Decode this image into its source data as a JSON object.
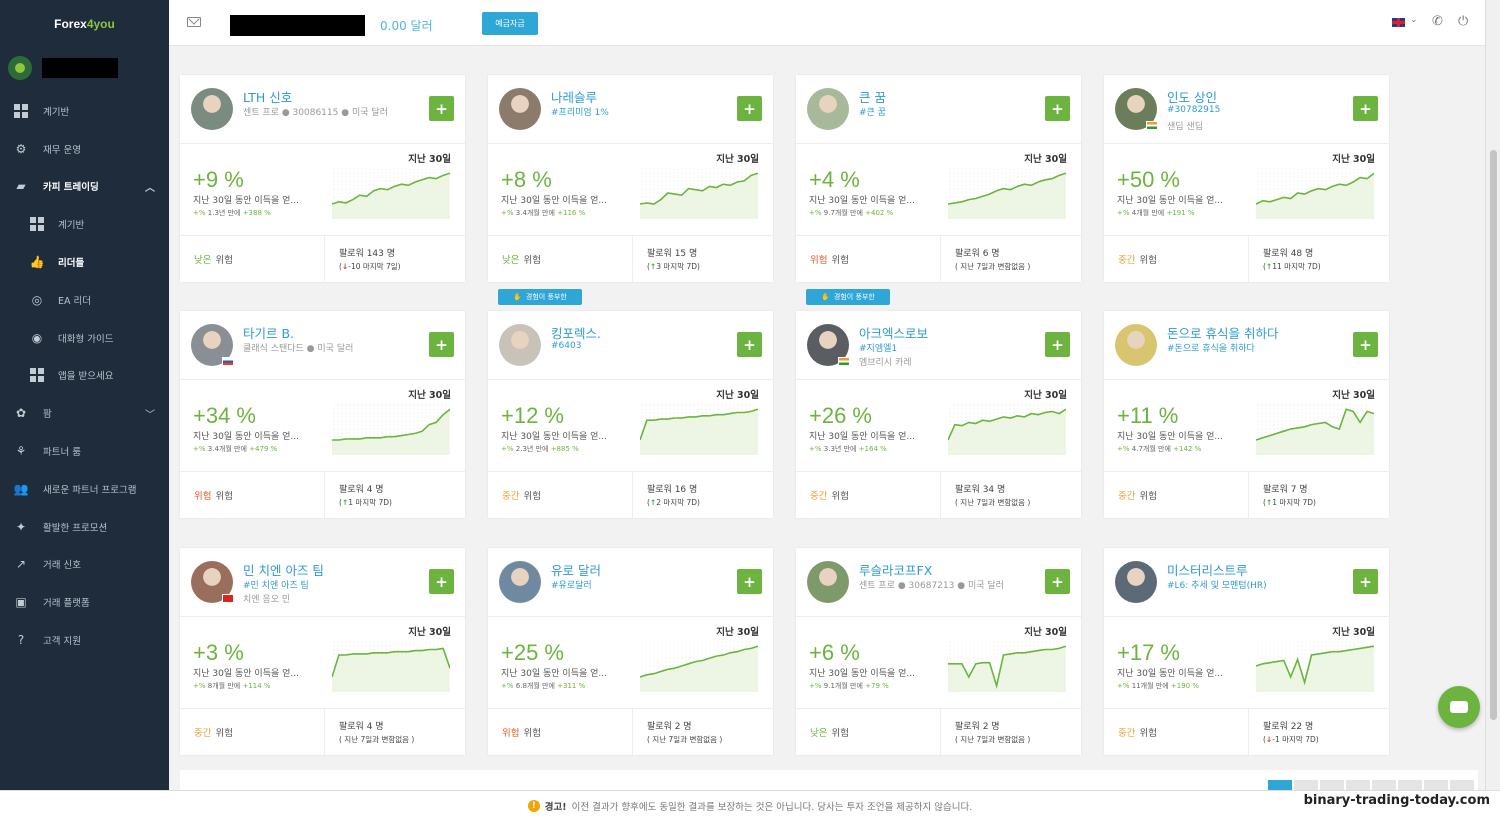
{
  "sidebar": {
    "logo_a": "Forex",
    "logo_b": "4you",
    "items": [
      {
        "label": "계기반",
        "icon": "dashboard-icon"
      },
      {
        "label": "재무 운영",
        "icon": "gear-icon"
      },
      {
        "label": "카피 트레이딩",
        "icon": "briefcase-icon"
      },
      {
        "label": "계기반",
        "icon": "dashboard-icon"
      },
      {
        "label": "리더들",
        "icon": "thumbs-up-icon"
      },
      {
        "label": "EA 리더",
        "icon": "robot-icon"
      },
      {
        "label": "대화형 가이드",
        "icon": "eye-icon"
      },
      {
        "label": "앱을 받으세요",
        "icon": "qr-icon"
      },
      {
        "label": "팜",
        "icon": "farm-icon"
      },
      {
        "label": "파트너 룸",
        "icon": "partner-icon"
      },
      {
        "label": "새로운 파트너 프로그램",
        "icon": "users-icon"
      },
      {
        "label": "활발한 프로모션",
        "icon": "megaphone-icon"
      },
      {
        "label": "거래 신호",
        "icon": "chart-line-icon"
      },
      {
        "label": "거래 플랫폼",
        "icon": "platform-icon"
      },
      {
        "label": "고객 지원",
        "icon": "help-icon"
      }
    ]
  },
  "topbar": {
    "balance": "0.00 달러",
    "deposit": "예금자금"
  },
  "labels": {
    "period": "지난 30일",
    "desc": "지난 30일 동안 이득을 얻...",
    "risk": "위험",
    "plus": "+",
    "experienced": "경험이 풍부한"
  },
  "traders": [
    {
      "name": "LTH 신호",
      "sub1": "센트 프로 ● 30086115 ● 미국 달러",
      "sub2": "",
      "pct": "+9 %",
      "since": "1.3년 만에",
      "since_pct": "+388 %",
      "risk_level": "낮은",
      "risk_class": "low",
      "followers": "팔로워 143 명",
      "delta": "-10",
      "delta_dir": "down",
      "delta_note": "마지막 7일)",
      "avatar": "#7a8b80",
      "flag": "",
      "badge": false,
      "spark": [
        10,
        12,
        11,
        14,
        18,
        17,
        22,
        24,
        23,
        26,
        28,
        27,
        30,
        32,
        34,
        33,
        36,
        38
      ]
    },
    {
      "name": "나레슬루",
      "sub1": "#프리미엄 1%",
      "sub2": "",
      "pct": "+8 %",
      "since": "3.4개월 만에",
      "since_pct": "+116 %",
      "risk_level": "낮은",
      "risk_class": "low",
      "followers": "팔로워 15 명",
      "delta": "3",
      "delta_dir": "up",
      "delta_note": "마지막 7D)",
      "avatar": "#8c7a6b",
      "flag": "",
      "badge": false,
      "spark": [
        10,
        11,
        10,
        14,
        20,
        19,
        18,
        24,
        23,
        22,
        26,
        25,
        28,
        27,
        30,
        31,
        36,
        38
      ]
    },
    {
      "name": "큰 꿈",
      "sub1": "#큰 꿈",
      "sub2": "",
      "pct": "+4 %",
      "since": "9.7개월 만에",
      "since_pct": "+402 %",
      "risk_level": "위험",
      "risk_class": "high",
      "followers": "팔로워 6 명",
      "delta": "",
      "delta_dir": "",
      "delta_note": "( 지난 7일과 변함없음 )",
      "avatar": "#a8b89a",
      "flag": "",
      "badge": false,
      "spark": [
        10,
        11,
        12,
        14,
        15,
        17,
        19,
        22,
        24,
        23,
        26,
        28,
        27,
        30,
        32,
        33,
        36,
        38
      ]
    },
    {
      "name": "인도 상인",
      "sub1": "#30782915",
      "sub2": "샌딥 샌딥",
      "pct": "+50 %",
      "since": "4개월 만에",
      "since_pct": "+191 %",
      "risk_level": "중간",
      "risk_class": "mid",
      "followers": "팔로워 48 명",
      "delta": "11",
      "delta_dir": "up",
      "delta_note": "마지막 7D)",
      "avatar": "#6b7d5a",
      "flag": "in",
      "badge": false,
      "spark": [
        10,
        13,
        12,
        14,
        16,
        15,
        20,
        19,
        22,
        24,
        23,
        26,
        28,
        27,
        30,
        34,
        33,
        38
      ]
    },
    {
      "name": "타기르 B.",
      "sub1": "클래식 스탠다드 ● 미국 달러",
      "sub2": "",
      "pct": "+34 %",
      "since": "3.4개월 만에",
      "since_pct": "+479 %",
      "risk_level": "위험",
      "risk_class": "high",
      "followers": "팔로워 4 명",
      "delta": "1",
      "delta_dir": "up",
      "delta_note": "마지막 7D)",
      "avatar": "#8a8f96",
      "flag": "ru",
      "badge": false,
      "spark": [
        10,
        10,
        11,
        11,
        11,
        12,
        12,
        12,
        13,
        13,
        14,
        15,
        16,
        18,
        24,
        26,
        33,
        38
      ]
    },
    {
      "name": "킹포렉스.",
      "sub1": "#6403",
      "sub2": "",
      "pct": "+12 %",
      "since": "2.3년 만에",
      "since_pct": "+885 %",
      "risk_level": "중간",
      "risk_class": "mid",
      "followers": "팔로워 16 명",
      "delta": "2",
      "delta_dir": "up",
      "delta_note": "마지막 7D)",
      "avatar": "#c9c2b8",
      "flag": "",
      "badge": true,
      "spark": [
        10,
        28,
        28,
        29,
        29,
        30,
        30,
        31,
        31,
        32,
        32,
        33,
        33,
        34,
        35,
        35,
        36,
        38
      ]
    },
    {
      "name": "아크엑스로보",
      "sub1": "#지엠엘1",
      "sub2": "엠브리시 카레",
      "pct": "+26 %",
      "since": "3.3년 만에",
      "since_pct": "+164 %",
      "risk_level": "중간",
      "risk_class": "mid",
      "followers": "팔로워 34 명",
      "delta": "",
      "delta_dir": "",
      "delta_note": "( 지난 7일과 변함없음 )",
      "avatar": "#5a5e63",
      "flag": "in",
      "badge": true,
      "spark": [
        10,
        24,
        23,
        26,
        25,
        28,
        27,
        29,
        31,
        30,
        32,
        31,
        34,
        33,
        35,
        36,
        34,
        38
      ]
    },
    {
      "name": "돈으로 휴식을 취하다",
      "sub1": "#돈으로 휴식을 취하다",
      "sub2": "",
      "pct": "+11 %",
      "since": "4.7개월 만에",
      "since_pct": "+142 %",
      "risk_level": "중간",
      "risk_class": "mid",
      "followers": "팔로워 7 명",
      "delta": "1",
      "delta_dir": "up",
      "delta_note": "마지막 7D)",
      "avatar": "#d9c470",
      "flag": "",
      "badge": false,
      "spark": [
        10,
        12,
        14,
        16,
        18,
        20,
        21,
        22,
        24,
        25,
        26,
        22,
        20,
        38,
        36,
        26,
        36,
        34
      ]
    },
    {
      "name": "민 치엔 아즈 팀",
      "sub1": "#민 치엔 아즈 팀",
      "sub2": "치엔 응오 민",
      "pct": "+3 %",
      "since": "8개월 만에",
      "since_pct": "+114 %",
      "risk_level": "중간",
      "risk_class": "mid",
      "followers": "팔로워 4 명",
      "delta": "",
      "delta_dir": "",
      "delta_note": "( 지난 7일과 변함없음 )",
      "avatar": "#9a6e5c",
      "flag": "vn",
      "badge": false,
      "spark": [
        10,
        30,
        30,
        31,
        31,
        31,
        32,
        32,
        32,
        33,
        33,
        33,
        34,
        34,
        35,
        35,
        36,
        18
      ]
    },
    {
      "name": "유로 달러",
      "sub1": "#유로달러",
      "sub2": "",
      "pct": "+25 %",
      "since": "6.8개월 만에",
      "since_pct": "+311 %",
      "risk_level": "위험",
      "risk_class": "high",
      "followers": "팔로워 2 명",
      "delta": "",
      "delta_dir": "",
      "delta_note": "( 지난 7일과 변함없음 )",
      "avatar": "#6f8aa0",
      "flag": "",
      "badge": false,
      "spark": [
        10,
        12,
        13,
        15,
        17,
        18,
        20,
        22,
        24,
        25,
        27,
        29,
        30,
        32,
        33,
        35,
        36,
        38
      ]
    },
    {
      "name": "루슬라코프FX",
      "sub1": "센트 프로 ● 30687213 ● 미국 달러",
      "sub2": "",
      "pct": "+6 %",
      "since": "9.1개월 만에",
      "since_pct": "+79 %",
      "risk_level": "낮은",
      "risk_class": "low",
      "followers": "팔로워 2 명",
      "delta": "",
      "delta_dir": "",
      "delta_note": "( 지난 7일과 변함없음 )",
      "avatar": "#7f9a6a",
      "flag": "",
      "badge": false,
      "spark": [
        22,
        22,
        22,
        10,
        22,
        23,
        23,
        2,
        30,
        31,
        32,
        32,
        33,
        34,
        35,
        35,
        36,
        38
      ]
    },
    {
      "name": "미스터리스트루",
      "sub1": "#L6: 추세 및 모멘텀(HR)",
      "sub2": "",
      "pct": "+17 %",
      "since": "11개월 만에",
      "since_pct": "+190 %",
      "risk_level": "중간",
      "risk_class": "mid",
      "followers": "팔로워 22 명",
      "delta": "-1",
      "delta_dir": "down",
      "delta_note": "마지막 7D)",
      "avatar": "#5c6a78",
      "flag": "",
      "badge": false,
      "spark": [
        20,
        22,
        23,
        24,
        25,
        10,
        26,
        5,
        30,
        31,
        32,
        33,
        33,
        34,
        35,
        36,
        37,
        38
      ]
    }
  ],
  "footer": {
    "warning_label": "경고!",
    "warning_text": "이전 결과가 향후에도 동일한 결과를 보장하는 것은 아닙니다. 당사는 투자 조언을 제공하지 않습니다.",
    "watermark": "binary-trading-today.com"
  }
}
